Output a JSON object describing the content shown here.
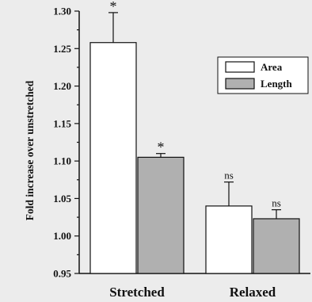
{
  "chart_data": {
    "type": "bar",
    "ylabel": "Fold increase over unstretched",
    "xlabel": "",
    "ylim": [
      0.95,
      1.3
    ],
    "yticks": [
      "0.95",
      "1.00",
      "1.05",
      "1.10",
      "1.15",
      "1.20",
      "1.25",
      "1.30"
    ],
    "y_minor_step": 0.025,
    "categories": [
      "Stretched",
      "Relaxed"
    ],
    "legend_position": "top-right",
    "grid": false,
    "series": [
      {
        "name": "Area",
        "color": "#ffffff",
        "values": [
          1.258,
          1.04
        ],
        "errors": [
          0.04,
          0.032
        ],
        "annotations": [
          "*",
          "ns"
        ]
      },
      {
        "name": "Length",
        "color": "#b0b0b0",
        "values": [
          1.105,
          1.023
        ],
        "errors": [
          0.005,
          0.012
        ],
        "annotations": [
          "*",
          "ns"
        ]
      }
    ]
  }
}
